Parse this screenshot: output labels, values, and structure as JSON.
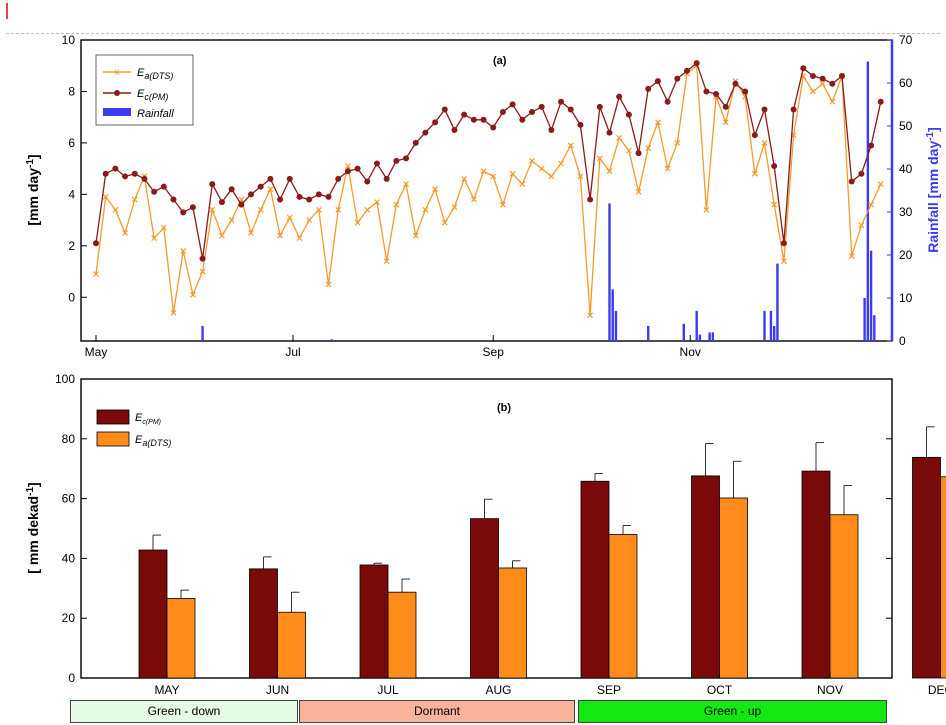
{
  "chart_data": [
    {
      "type": "line",
      "panel_label": "(a)",
      "ylabel": "[mm day-1]",
      "ylabel_right": "Rainfall [mm day-1]",
      "ylim": [
        -1.7,
        10
      ],
      "yticks": [
        0,
        2,
        4,
        6,
        8,
        10
      ],
      "ylim_right": [
        0,
        70
      ],
      "yticks_right": [
        0,
        10,
        20,
        30,
        40,
        50,
        60,
        70
      ],
      "xticks": [
        "May",
        "Jul",
        "Sep",
        "Nov"
      ],
      "xticks_day": [
        0,
        61,
        123,
        184
      ],
      "xrange_days": [
        0,
        244
      ],
      "legend": [
        {
          "label": "Ea(DTS)",
          "base": "E",
          "sub": "a(DTS)",
          "color": "#f79a2a"
        },
        {
          "label": "Ec(PM)",
          "base": "E",
          "sub": "c(PM)",
          "color": "#8b1a1a"
        },
        {
          "label": "Rainfall",
          "base": "Rainfall",
          "sub": "",
          "color": "#3b3bf0"
        }
      ],
      "series": [
        {
          "name": "Ea(DTS)",
          "color": "#f79a2a",
          "marker": "x",
          "x": [
            0,
            3,
            6,
            9,
            12,
            15,
            18,
            21,
            24,
            27,
            30,
            33,
            36,
            39,
            42,
            45,
            48,
            51,
            54,
            57,
            60,
            63,
            66,
            69,
            72,
            75,
            78,
            81,
            84,
            87,
            90,
            93,
            96,
            99,
            102,
            105,
            108,
            111,
            114,
            117,
            120,
            123,
            126,
            129,
            132,
            135,
            138,
            141,
            144,
            147,
            150,
            153,
            156,
            159,
            162,
            165,
            168,
            171,
            174,
            177,
            180,
            183,
            186,
            189,
            192,
            195,
            198,
            201,
            204,
            207,
            210,
            213,
            216,
            219,
            222,
            225,
            228,
            231,
            234,
            237,
            240,
            243
          ],
          "y": [
            0.9,
            3.9,
            3.4,
            2.5,
            3.8,
            4.7,
            2.3,
            2.7,
            -0.6,
            1.8,
            0.1,
            1.0,
            3.4,
            2.4,
            3.0,
            3.8,
            2.5,
            3.4,
            4.2,
            2.4,
            3.1,
            2.3,
            3.0,
            3.4,
            0.5,
            3.4,
            5.1,
            2.9,
            3.4,
            3.7,
            1.4,
            3.6,
            4.4,
            2.4,
            3.4,
            4.2,
            2.9,
            3.5,
            4.6,
            3.8,
            4.9,
            4.7,
            3.6,
            4.8,
            4.4,
            5.3,
            5.0,
            4.7,
            5.2,
            5.9,
            4.7,
            -0.7,
            5.4,
            4.9,
            6.2,
            5.7,
            4.1,
            5.8,
            6.8,
            5.0,
            6.0,
            8.7,
            9.0,
            3.4,
            7.8,
            6.8,
            8.4,
            7.8,
            4.8,
            6.0,
            3.6,
            1.4,
            6.3,
            8.6,
            8.0,
            8.3,
            7.6,
            8.6,
            1.6,
            2.8,
            3.6,
            4.4
          ]
        },
        {
          "name": "Ec(PM)",
          "color": "#8b1a1a",
          "marker": "o",
          "x": [
            0,
            3,
            6,
            9,
            12,
            15,
            18,
            21,
            24,
            27,
            30,
            33,
            36,
            39,
            42,
            45,
            48,
            51,
            54,
            57,
            60,
            63,
            66,
            69,
            72,
            75,
            78,
            81,
            84,
            87,
            90,
            93,
            96,
            99,
            102,
            105,
            108,
            111,
            114,
            117,
            120,
            123,
            126,
            129,
            132,
            135,
            138,
            141,
            144,
            147,
            150,
            153,
            156,
            159,
            162,
            165,
            168,
            171,
            174,
            177,
            180,
            183,
            186,
            189,
            192,
            195,
            198,
            201,
            204,
            207,
            210,
            213,
            216,
            219,
            222,
            225,
            228,
            231,
            234,
            237,
            240,
            243
          ],
          "y": [
            2.1,
            4.8,
            5.0,
            4.7,
            4.8,
            4.6,
            4.1,
            4.3,
            3.8,
            3.3,
            3.5,
            1.5,
            4.4,
            3.7,
            4.2,
            3.6,
            4.0,
            4.3,
            4.6,
            3.8,
            4.6,
            3.9,
            3.8,
            4.0,
            3.9,
            4.6,
            4.9,
            5.0,
            4.5,
            5.2,
            4.6,
            5.3,
            5.4,
            6.0,
            6.4,
            6.8,
            7.3,
            6.5,
            7.1,
            6.9,
            6.9,
            6.6,
            7.2,
            7.5,
            6.9,
            7.2,
            7.4,
            6.5,
            7.6,
            7.3,
            6.7,
            3.8,
            7.4,
            6.4,
            7.8,
            7.1,
            5.6,
            8.1,
            8.4,
            7.6,
            8.5,
            8.8,
            9.1,
            8.0,
            7.9,
            7.4,
            8.3,
            8.0,
            6.3,
            7.3,
            5.1,
            2.1,
            7.3,
            8.9,
            8.6,
            8.5,
            8.3,
            8.6,
            4.5,
            4.8,
            5.9,
            7.6
          ]
        },
        {
          "name": "Rainfall",
          "color": "#3b3bf0",
          "type": "bar",
          "axis": "right",
          "x": [
            33,
            73,
            159,
            160,
            161,
            171,
            182,
            186,
            187,
            190,
            191,
            207,
            209,
            210,
            211,
            238,
            239,
            240,
            241
          ],
          "y": [
            3.5,
            0.4,
            32,
            12,
            7,
            3.5,
            4,
            7,
            1.5,
            2,
            2,
            7,
            7,
            3.5,
            18,
            10,
            65,
            21,
            6
          ]
        }
      ]
    },
    {
      "type": "bar",
      "panel_label": "(b)",
      "ylabel": "[ mm dekad-1]",
      "ylim": [
        0,
        100
      ],
      "yticks": [
        0,
        20,
        40,
        60,
        80,
        100
      ],
      "categories": [
        "MAY",
        "JUN",
        "JUL",
        "AUG",
        "SEP",
        "OCT",
        "NOV",
        "DEC"
      ],
      "legend": [
        {
          "label": "Ec(PM)",
          "base": "E",
          "sub": "c(PM)",
          "color": "#7a0a0a"
        },
        {
          "label": "Ea(DTS)",
          "base": "E",
          "sub": "a(DTS)",
          "color": "#ff8c1a"
        }
      ],
      "series": [
        {
          "name": "Ec(PM)",
          "color": "#7a0a0a",
          "values": [
            42.8,
            36.5,
            37.8,
            53.3,
            65.8,
            67.6,
            69.2,
            73.8
          ],
          "errors": [
            5.0,
            4.0,
            0.6,
            6.5,
            2.6,
            10.8,
            9.5,
            10.2
          ]
        },
        {
          "name": "Ea(DTS)",
          "color": "#ff8c1a",
          "values": [
            26.6,
            22.0,
            28.7,
            36.8,
            48.0,
            60.2,
            54.6,
            67.3
          ],
          "errors": [
            2.8,
            6.7,
            4.4,
            2.4,
            3.0,
            12.3,
            9.8,
            9.8
          ]
        }
      ]
    }
  ],
  "phases": [
    {
      "label": "Green - down",
      "color": "#e4fbe6"
    },
    {
      "label": "Dormant",
      "color": "#f9b39a"
    },
    {
      "label": "Green - up",
      "color": "#12e812"
    }
  ]
}
